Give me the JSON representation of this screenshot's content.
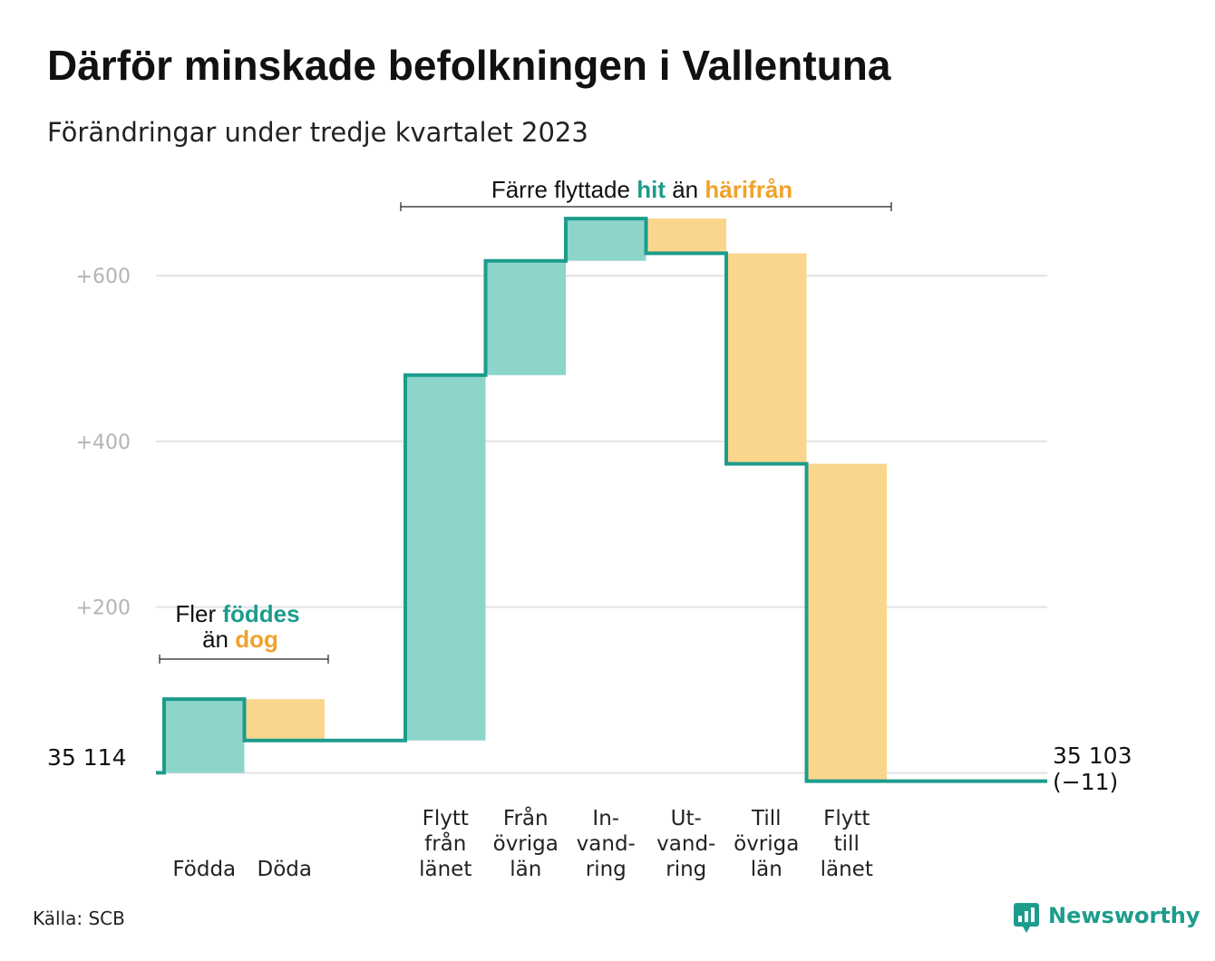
{
  "title": "Därför minskade befolkningen i Vallentuna",
  "subtitle": "Förändringar under tredje kvartalet 2023",
  "colors": {
    "in": "#8dd5cb",
    "out": "#fad68d",
    "line": "#1d9c8c",
    "in_text": "#1d9c8c",
    "out_text": "#f0a22a",
    "grid": "#e2e2e8"
  },
  "chart_data": {
    "type": "waterfall",
    "start_label": "35  114",
    "start_value": 35114,
    "end_label": "35 103",
    "end_change_label": "(−11)",
    "y_ticks": [
      {
        "label": "+200",
        "value": 200
      },
      {
        "label": "+400",
        "value": 400
      },
      {
        "label": "+600",
        "value": 600
      }
    ],
    "ylim": [
      -40,
      680
    ],
    "steps": [
      {
        "lines": [
          "Födda"
        ],
        "value": 89,
        "kind": "in"
      },
      {
        "lines": [
          "Döda"
        ],
        "value": -50,
        "kind": "out"
      },
      {
        "lines": [
          "Flytt",
          "från",
          "länet"
        ],
        "value": 441,
        "kind": "in"
      },
      {
        "lines": [
          "Från",
          "övriga",
          "län"
        ],
        "value": 138,
        "kind": "in"
      },
      {
        "lines": [
          "In-",
          "vand-",
          "ring"
        ],
        "value": 51,
        "kind": "in"
      },
      {
        "lines": [
          "Ut-",
          "vand-",
          "ring"
        ],
        "value": -42,
        "kind": "out"
      },
      {
        "lines": [
          "Till",
          "övriga",
          "län"
        ],
        "value": -254,
        "kind": "out"
      },
      {
        "lines": [
          "Flytt",
          "till",
          "länet"
        ],
        "value": -383,
        "kind": "out"
      }
    ]
  },
  "annotations": {
    "births": {
      "line1_pre": "Fler ",
      "line1_hl": "föddes",
      "line2_pre": "än ",
      "line2_hl": "dog"
    },
    "migration": {
      "pre": "Färre flyttade ",
      "hl1": "hit",
      "mid": " än ",
      "hl2": "härifrån"
    }
  },
  "source": "Källa: SCB",
  "brand": "Newsworthy"
}
